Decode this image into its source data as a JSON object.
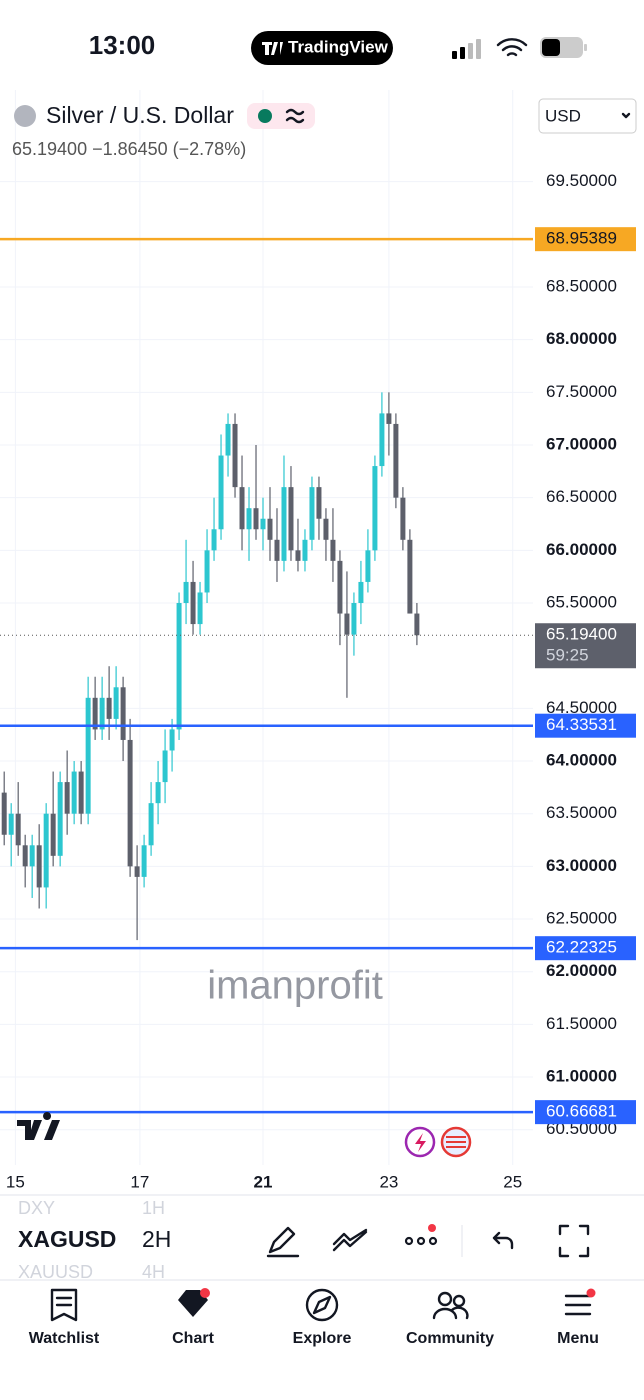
{
  "status_bar": {
    "time": "13:00",
    "app": "TradingView"
  },
  "header": {
    "symbol": "Silver / U.S. Dollar",
    "quote": "65.19400 −1.86450 (−2.78%)",
    "currency": "USD"
  },
  "chart_data": {
    "type": "candlestick",
    "x": [
      0,
      1,
      2,
      3,
      4,
      5,
      6,
      7,
      8,
      9,
      10,
      11,
      12,
      13,
      14,
      15,
      16,
      17,
      18,
      19,
      20,
      21,
      22,
      23,
      24,
      25,
      26,
      27,
      28,
      29,
      30,
      31,
      32,
      33,
      34,
      35,
      36,
      37,
      38,
      39,
      40,
      41,
      42,
      43,
      44,
      45,
      46,
      47,
      48,
      49,
      50,
      51,
      52,
      53,
      54,
      55,
      56,
      57,
      58,
      59
    ],
    "open": [
      63.7,
      63.3,
      63.5,
      63.2,
      63.0,
      63.2,
      62.8,
      63.5,
      63.1,
      63.8,
      63.5,
      63.9,
      63.5,
      64.6,
      64.3,
      64.6,
      64.4,
      64.7,
      64.2,
      63.0,
      62.9,
      63.2,
      63.6,
      63.8,
      64.1,
      64.3,
      65.5,
      65.7,
      65.3,
      65.6,
      66.0,
      66.2,
      66.9,
      67.2,
      66.6,
      66.2,
      66.4,
      66.2,
      66.3,
      66.1,
      65.9,
      66.6,
      66.0,
      65.9,
      66.1,
      66.6,
      66.3,
      66.1,
      65.9,
      65.4,
      65.2,
      65.5,
      65.7,
      66.0,
      66.8,
      67.3,
      67.2,
      66.5,
      66.1,
      65.4
    ],
    "high": [
      63.9,
      63.6,
      63.8,
      63.3,
      63.3,
      63.4,
      63.6,
      63.9,
      63.9,
      64.1,
      64.0,
      64.0,
      64.8,
      64.8,
      64.8,
      64.9,
      64.9,
      64.8,
      64.4,
      63.2,
      63.3,
      63.8,
      64.0,
      64.3,
      64.4,
      65.6,
      66.1,
      65.9,
      65.7,
      66.2,
      66.5,
      67.1,
      67.3,
      67.3,
      66.9,
      66.6,
      67.0,
      66.5,
      66.6,
      66.4,
      66.9,
      66.8,
      66.3,
      66.2,
      66.7,
      66.7,
      66.4,
      66.4,
      66.0,
      65.8,
      65.6,
      65.9,
      66.2,
      66.9,
      67.5,
      67.5,
      67.3,
      66.6,
      66.2,
      65.5
    ],
    "low": [
      63.2,
      63.0,
      63.1,
      62.8,
      62.7,
      62.6,
      62.6,
      63.0,
      63.0,
      63.3,
      63.4,
      63.4,
      63.4,
      64.2,
      64.2,
      64.2,
      64.3,
      64.0,
      62.9,
      62.3,
      62.8,
      63.1,
      63.4,
      63.6,
      63.9,
      64.2,
      65.3,
      65.2,
      65.2,
      65.5,
      65.9,
      66.1,
      66.7,
      66.5,
      66.0,
      65.9,
      66.1,
      66.0,
      65.9,
      65.7,
      65.8,
      65.9,
      65.8,
      65.8,
      66.0,
      66.1,
      65.9,
      65.7,
      65.1,
      64.6,
      65.0,
      65.3,
      65.6,
      65.9,
      66.7,
      66.9,
      66.4,
      66.0,
      65.4,
      65.1
    ],
    "close": [
      63.3,
      63.5,
      63.2,
      63.0,
      63.2,
      62.8,
      63.5,
      63.1,
      63.8,
      63.5,
      63.9,
      63.5,
      64.6,
      64.3,
      64.6,
      64.4,
      64.7,
      64.2,
      63.0,
      62.9,
      63.2,
      63.6,
      63.8,
      64.1,
      64.3,
      65.5,
      65.7,
      65.3,
      65.6,
      66.0,
      66.2,
      66.9,
      67.2,
      66.6,
      66.2,
      66.4,
      66.2,
      66.3,
      66.1,
      65.9,
      66.6,
      66.0,
      65.9,
      66.1,
      66.6,
      66.3,
      66.1,
      65.9,
      65.4,
      65.2,
      65.5,
      65.7,
      66.0,
      66.8,
      67.3,
      67.2,
      66.5,
      66.1,
      65.4,
      65.194
    ],
    "up_color": "#2cc6cf",
    "down_color": "#5d606b",
    "xlim": [
      -0.6,
      75.6
    ],
    "xticks": [
      {
        "value": 1.6,
        "label": "15"
      },
      {
        "value": 19.4,
        "label": "17"
      },
      {
        "value": 37.0,
        "label": "21"
      },
      {
        "value": 55.0,
        "label": "23"
      },
      {
        "value": 72.7,
        "label": "25"
      }
    ],
    "ylim": [
      60.165,
      70.37
    ],
    "yticks": [
      {
        "value": 69.5,
        "label": "69.50000"
      },
      {
        "value": 68.5,
        "label": "68.50000"
      },
      {
        "value": 68,
        "label": "68.00000"
      },
      {
        "value": 67.5,
        "label": "67.50000"
      },
      {
        "value": 67,
        "label": "67.00000"
      },
      {
        "value": 66.5,
        "label": "66.50000"
      },
      {
        "value": 66,
        "label": "66.00000"
      },
      {
        "value": 65.5,
        "label": "65.50000"
      },
      {
        "value": 64.5,
        "label": "64.50000"
      },
      {
        "value": 64,
        "label": "64.00000"
      },
      {
        "value": 63.5,
        "label": "63.50000"
      },
      {
        "value": 63,
        "label": "63.00000"
      },
      {
        "value": 62.5,
        "label": "62.50000"
      },
      {
        "value": 62,
        "label": "62.00000"
      },
      {
        "value": 61.5,
        "label": "61.50000"
      },
      {
        "value": 61,
        "label": "61.00000"
      },
      {
        "value": 60.5,
        "label": "60.50000"
      }
    ],
    "grid": true,
    "levels": [
      {
        "value": 68.95389,
        "color": "#f7a823"
      },
      {
        "value": 64.33531,
        "color": "#2962ff"
      },
      {
        "value": 62.22325,
        "color": "#2962ff"
      },
      {
        "value": 60.66681,
        "color": "#2962ff"
      }
    ],
    "last_price": {
      "value": 65.194,
      "label": "65.19400",
      "countdown": "59:25"
    },
    "watermark": "imanprofit"
  },
  "toolbar": {
    "symbols": [
      "DXY",
      "XAGUSD",
      "XAUUSD"
    ],
    "intervals": [
      "1H",
      "2H",
      "4H"
    ]
  },
  "tabs": [
    "Watchlist",
    "Chart",
    "Explore",
    "Community",
    "Menu"
  ]
}
